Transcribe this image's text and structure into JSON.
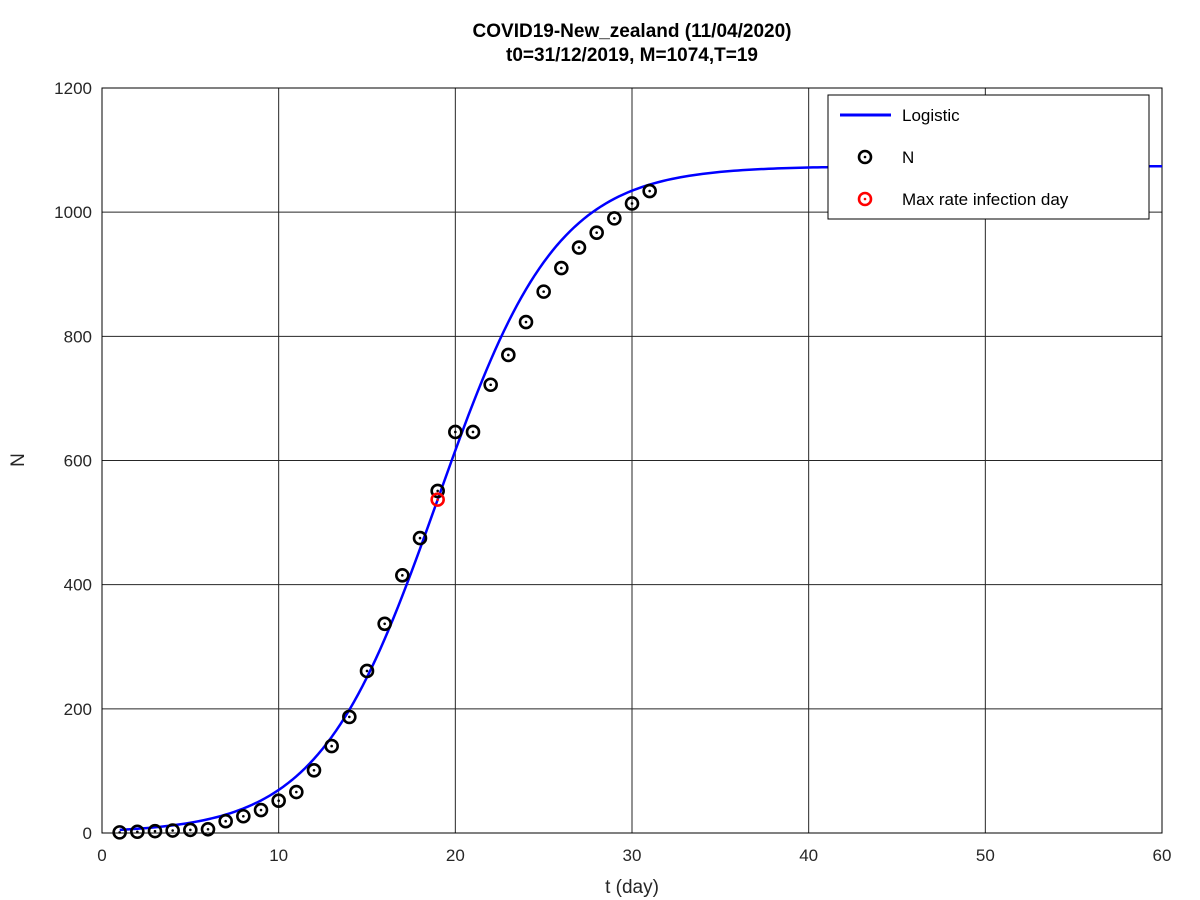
{
  "chart_data": {
    "type": "line",
    "title": "COVID19-New_zealand (11/04/2020)",
    "subtitle": "t0=31/12/2019, M=1074,T=19",
    "xlabel": "t (day)",
    "ylabel": "N",
    "xlim": [
      0,
      60
    ],
    "ylim": [
      0,
      1200
    ],
    "xticks": [
      0,
      10,
      20,
      30,
      40,
      50,
      60
    ],
    "yticks": [
      0,
      200,
      400,
      600,
      800,
      1000,
      1200
    ],
    "grid": true,
    "legend_position": "top-right",
    "series": [
      {
        "name": "Logistic",
        "kind": "line",
        "color": "#0000ff",
        "model": {
          "M": 1074,
          "T": 19,
          "k": 0.297,
          "x_start": 1,
          "x_end": 60
        }
      },
      {
        "name": "N",
        "kind": "scatter",
        "color": "#000000",
        "x": [
          1,
          2,
          3,
          4,
          5,
          6,
          7,
          8,
          9,
          10,
          11,
          12,
          13,
          14,
          15,
          16,
          17,
          18,
          19,
          20,
          21,
          22,
          23,
          24,
          25,
          26,
          27,
          28,
          29,
          30,
          31
        ],
        "y": [
          1,
          2,
          3,
          4,
          5,
          6,
          19,
          27,
          37,
          52,
          66,
          101,
          140,
          187,
          261,
          337,
          415,
          475,
          551,
          646,
          646,
          722,
          770,
          823,
          872,
          910,
          943,
          967,
          990,
          1014,
          1034
        ]
      },
      {
        "name": "Max rate infection day",
        "kind": "scatter",
        "color": "#ff0000",
        "x": [
          19
        ],
        "y": [
          537
        ]
      }
    ]
  }
}
